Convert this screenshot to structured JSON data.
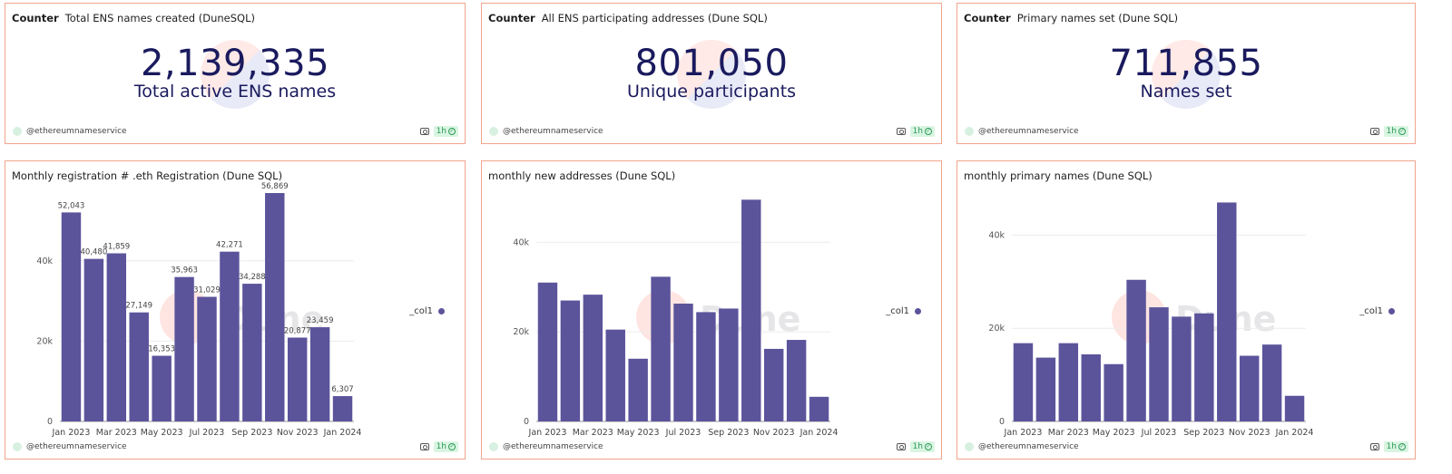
{
  "colors": {
    "bar": "#5b549b",
    "accent": "#f0a58c",
    "counter": "#1a1a5e"
  },
  "counters": [
    {
      "kind": "Counter",
      "title": "Total ENS names created (DuneSQL)",
      "value": "2,139,335",
      "label": "Total active ENS names",
      "author": "@ethereumnameservice",
      "refresh": "1h"
    },
    {
      "kind": "Counter",
      "title": "All ENS participating addresses (Dune SQL)",
      "value": "801,050",
      "label": "Unique participants",
      "author": "@ethereumnameservice",
      "refresh": "1h"
    },
    {
      "kind": "Counter",
      "title": "Primary names set (Dune SQL)",
      "value": "711,855",
      "label": "Names set",
      "author": "@ethereumnameservice",
      "refresh": "1h"
    }
  ],
  "charts": [
    {
      "title": "Monthly registration #  .eth Registration (Dune SQL)",
      "author": "@ethereumnameservice",
      "refresh": "1h",
      "legend": "_col1",
      "watermark": "Dune"
    },
    {
      "title": "monthly new addresses (Dune SQL)",
      "author": "@ethereumnameservice",
      "refresh": "1h",
      "legend": "_col1",
      "watermark": "Dune"
    },
    {
      "title": "monthly primary names (Dune SQL)",
      "author": "@ethereumnameservice",
      "refresh": "1h",
      "legend": "_col1",
      "watermark": "Dune"
    }
  ],
  "chart_data": [
    {
      "type": "bar",
      "title": "Monthly registration #  .eth Registration (Dune SQL)",
      "categories": [
        "Jan 2023",
        "Feb 2023",
        "Mar 2023",
        "Apr 2023",
        "May 2023",
        "Jun 2023",
        "Jul 2023",
        "Aug 2023",
        "Sep 2023",
        "Oct 2023",
        "Nov 2023",
        "Dec 2023",
        "Jan 2024"
      ],
      "tick_labels": [
        "Jan 2023",
        "Mar 2023",
        "May 2023",
        "Jul 2023",
        "Sep 2023",
        "Nov 2023",
        "Jan 2024"
      ],
      "series": [
        {
          "name": "_col1",
          "values": [
            52043,
            40480,
            41859,
            27149,
            16353,
            35963,
            31029,
            42271,
            34288,
            56869,
            20877,
            23459,
            6307
          ]
        }
      ],
      "data_labels": [
        "52,043",
        "40,480",
        "41,859",
        "27,149",
        "16,353",
        "35,963",
        "31,029",
        "42,271",
        "34,288",
        "56,869",
        "20,877",
        "23,459",
        "6,307"
      ],
      "yticks": [
        0,
        20000,
        40000
      ],
      "ytick_labels": [
        "0",
        "20k",
        "40k"
      ],
      "ylim": [
        0,
        58000
      ],
      "xlabel": "",
      "ylabel": ""
    },
    {
      "type": "bar",
      "title": "monthly new addresses (Dune SQL)",
      "categories": [
        "Jan 2023",
        "Feb 2023",
        "Mar 2023",
        "Apr 2023",
        "May 2023",
        "Jun 2023",
        "Jul 2023",
        "Aug 2023",
        "Sep 2023",
        "Oct 2023",
        "Nov 2023",
        "Dec 2023",
        "Jan 2024"
      ],
      "tick_labels": [
        "Jan 2023",
        "Mar 2023",
        "May 2023",
        "Jul 2023",
        "Sep 2023",
        "Nov 2023",
        "Jan 2024"
      ],
      "series": [
        {
          "name": "_col1",
          "values": [
            31000,
            27000,
            28300,
            20500,
            14000,
            32300,
            26300,
            24400,
            25200,
            49500,
            16200,
            18200,
            5500
          ]
        }
      ],
      "yticks": [
        0,
        20000,
        40000
      ],
      "ytick_labels": [
        "0",
        "20k",
        "40k"
      ],
      "ylim": [
        0,
        52000
      ],
      "xlabel": "",
      "ylabel": ""
    },
    {
      "type": "bar",
      "title": "monthly primary names (Dune SQL)",
      "categories": [
        "Jan 2023",
        "Feb 2023",
        "Mar 2023",
        "Apr 2023",
        "May 2023",
        "Jun 2023",
        "Jul 2023",
        "Aug 2023",
        "Sep 2023",
        "Oct 2023",
        "Nov 2023",
        "Dec 2023",
        "Jan 2024"
      ],
      "tick_labels": [
        "Jan 2023",
        "Mar 2023",
        "May 2023",
        "Jul 2023",
        "Sep 2023",
        "Nov 2023",
        "Jan 2024"
      ],
      "series": [
        {
          "name": "_col1",
          "values": [
            16800,
            13700,
            16800,
            14400,
            12300,
            30400,
            24500,
            22500,
            23200,
            47000,
            14100,
            16500,
            5500
          ]
        }
      ],
      "yticks": [
        0,
        20000,
        40000
      ],
      "ytick_labels": [
        "0",
        "20k",
        "40k"
      ],
      "ylim": [
        0,
        50000
      ],
      "xlabel": "",
      "ylabel": ""
    }
  ]
}
